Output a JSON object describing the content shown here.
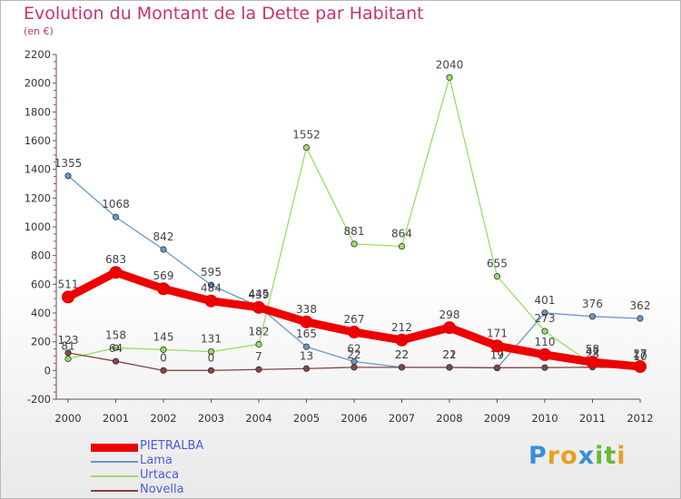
{
  "chart_data": {
    "type": "line",
    "title": "Evolution du Montant de la Dette par Habitant",
    "subtitle": "(en €)",
    "x": [
      "2000",
      "2001",
      "2002",
      "2003",
      "2004",
      "2005",
      "2006",
      "2007",
      "2008",
      "2009",
      "2010",
      "2011",
      "2012"
    ],
    "ylim": [
      -200,
      2200
    ],
    "yticks": [
      -200,
      0,
      200,
      400,
      600,
      800,
      1000,
      1200,
      1400,
      1600,
      1800,
      2000,
      2200
    ],
    "grid": false,
    "legend": "bottom-left",
    "series": [
      {
        "name": "PIETRALBA",
        "color": "#ee0000",
        "values": [
          511,
          683,
          569,
          484,
          439,
          338,
          267,
          212,
          298,
          171,
          110,
          58,
          27
        ]
      },
      {
        "name": "Lama",
        "color": "#6699cc",
        "values": [
          1355,
          1068,
          842,
          595,
          445,
          165,
          62,
          22,
          22,
          17,
          401,
          376,
          362
        ]
      },
      {
        "name": "Urtaca",
        "color": "#99dd66",
        "values": [
          81,
          158,
          145,
          131,
          182,
          1552,
          881,
          864,
          2040,
          655,
          273,
          42,
          10
        ]
      },
      {
        "name": "Novella",
        "color": "#884444",
        "values": [
          123,
          64,
          0,
          0,
          7,
          13,
          22,
          22,
          21,
          19,
          20,
          23,
          17
        ]
      }
    ]
  },
  "logo": {
    "letters": [
      "P",
      "r",
      "o",
      "x",
      "i",
      "t",
      "i"
    ],
    "colors": [
      "#3a8fd8",
      "#e8a020",
      "#e8a020",
      "#3a8fd8",
      "#66bb33",
      "#66bb33",
      "#e8a020"
    ]
  }
}
